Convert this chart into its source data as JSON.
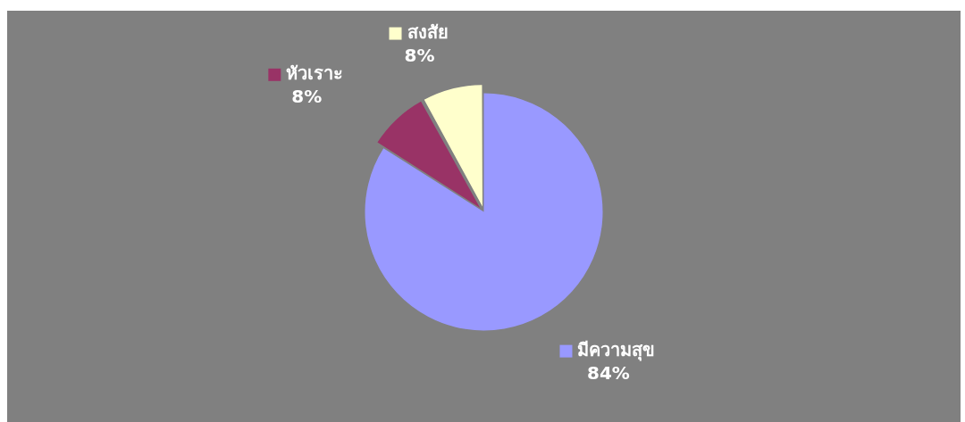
{
  "chart_data": {
    "type": "pie",
    "categories": [
      "มีความสุข",
      "หัวเราะ",
      "สงสัย"
    ],
    "values": [
      84,
      8,
      8
    ],
    "colors": [
      "#9999ff",
      "#993366",
      "#ffffcc"
    ],
    "value_labels": [
      "84%",
      "8%",
      "8%"
    ],
    "legend": "top"
  }
}
